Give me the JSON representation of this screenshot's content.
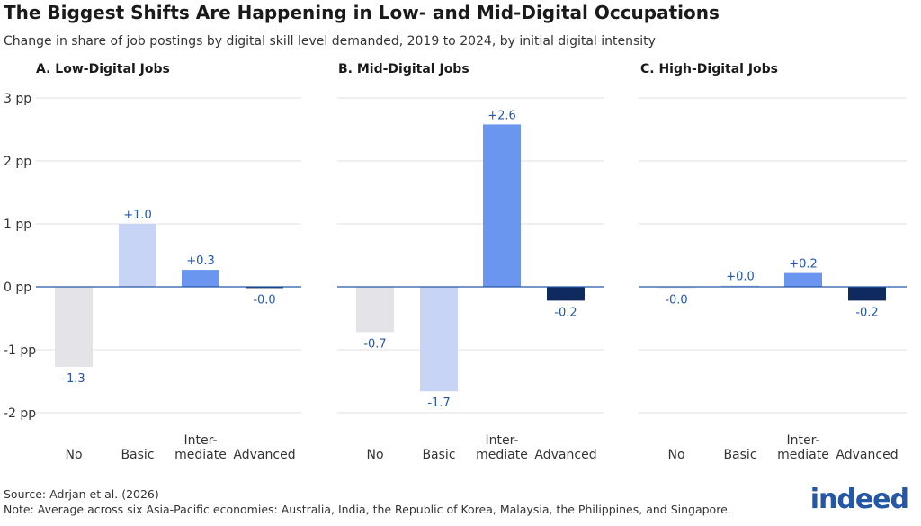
{
  "title": "The Biggest Shifts Are Happening in Low- and Mid-Digital Occupations",
  "subtitle": "Change in share of job postings by digital skill level demanded, 2019 to 2024, by initial digital intensity",
  "source": "Source: Adrjan et al. (2026)",
  "note": "Note: Average across six Asia-Pacific economies: Australia, India, the Republic of Korea, Malaysia, the Philippines, and Singapore.",
  "logo": "indeed",
  "colors": {
    "No": "#e4e4e8",
    "Basic": "#c8d4f5",
    "Intermediate": "#6b96ef",
    "Advanced": "#0e2a5e",
    "label": "#2557a7",
    "grid": "#e0e0e0",
    "axis": "#2557a7"
  },
  "chart_data": {
    "type": "bar",
    "ylim": [
      -2,
      3
    ],
    "yticks": [
      3,
      2,
      1,
      0,
      -1,
      -2
    ],
    "ytick_labels": [
      "3 pp",
      "2 pp",
      "1 pp",
      "0 pp",
      "-1 pp",
      "-2 pp"
    ],
    "categories": [
      [
        "No"
      ],
      [
        "Basic"
      ],
      [
        "Inter-",
        "mediate"
      ],
      [
        "Advanced"
      ]
    ],
    "category_keys": [
      "No",
      "Basic",
      "Intermediate",
      "Advanced"
    ],
    "panels": [
      {
        "title": "A. Low-Digital Jobs",
        "values": [
          -1.27,
          1.0,
          0.27,
          -0.02
        ],
        "labels": [
          "-1.3",
          "+1.0",
          "+0.3",
          "-0.0"
        ]
      },
      {
        "title": "B. Mid-Digital Jobs",
        "values": [
          -0.72,
          -1.66,
          2.58,
          -0.22
        ],
        "labels": [
          "-0.7",
          "-1.7",
          "+2.6",
          "-0.2"
        ]
      },
      {
        "title": "C. High-Digital Jobs",
        "values": [
          -0.02,
          0.02,
          0.22,
          -0.22
        ],
        "labels": [
          "-0.0",
          "+0.0",
          "+0.2",
          "-0.2"
        ]
      }
    ]
  }
}
